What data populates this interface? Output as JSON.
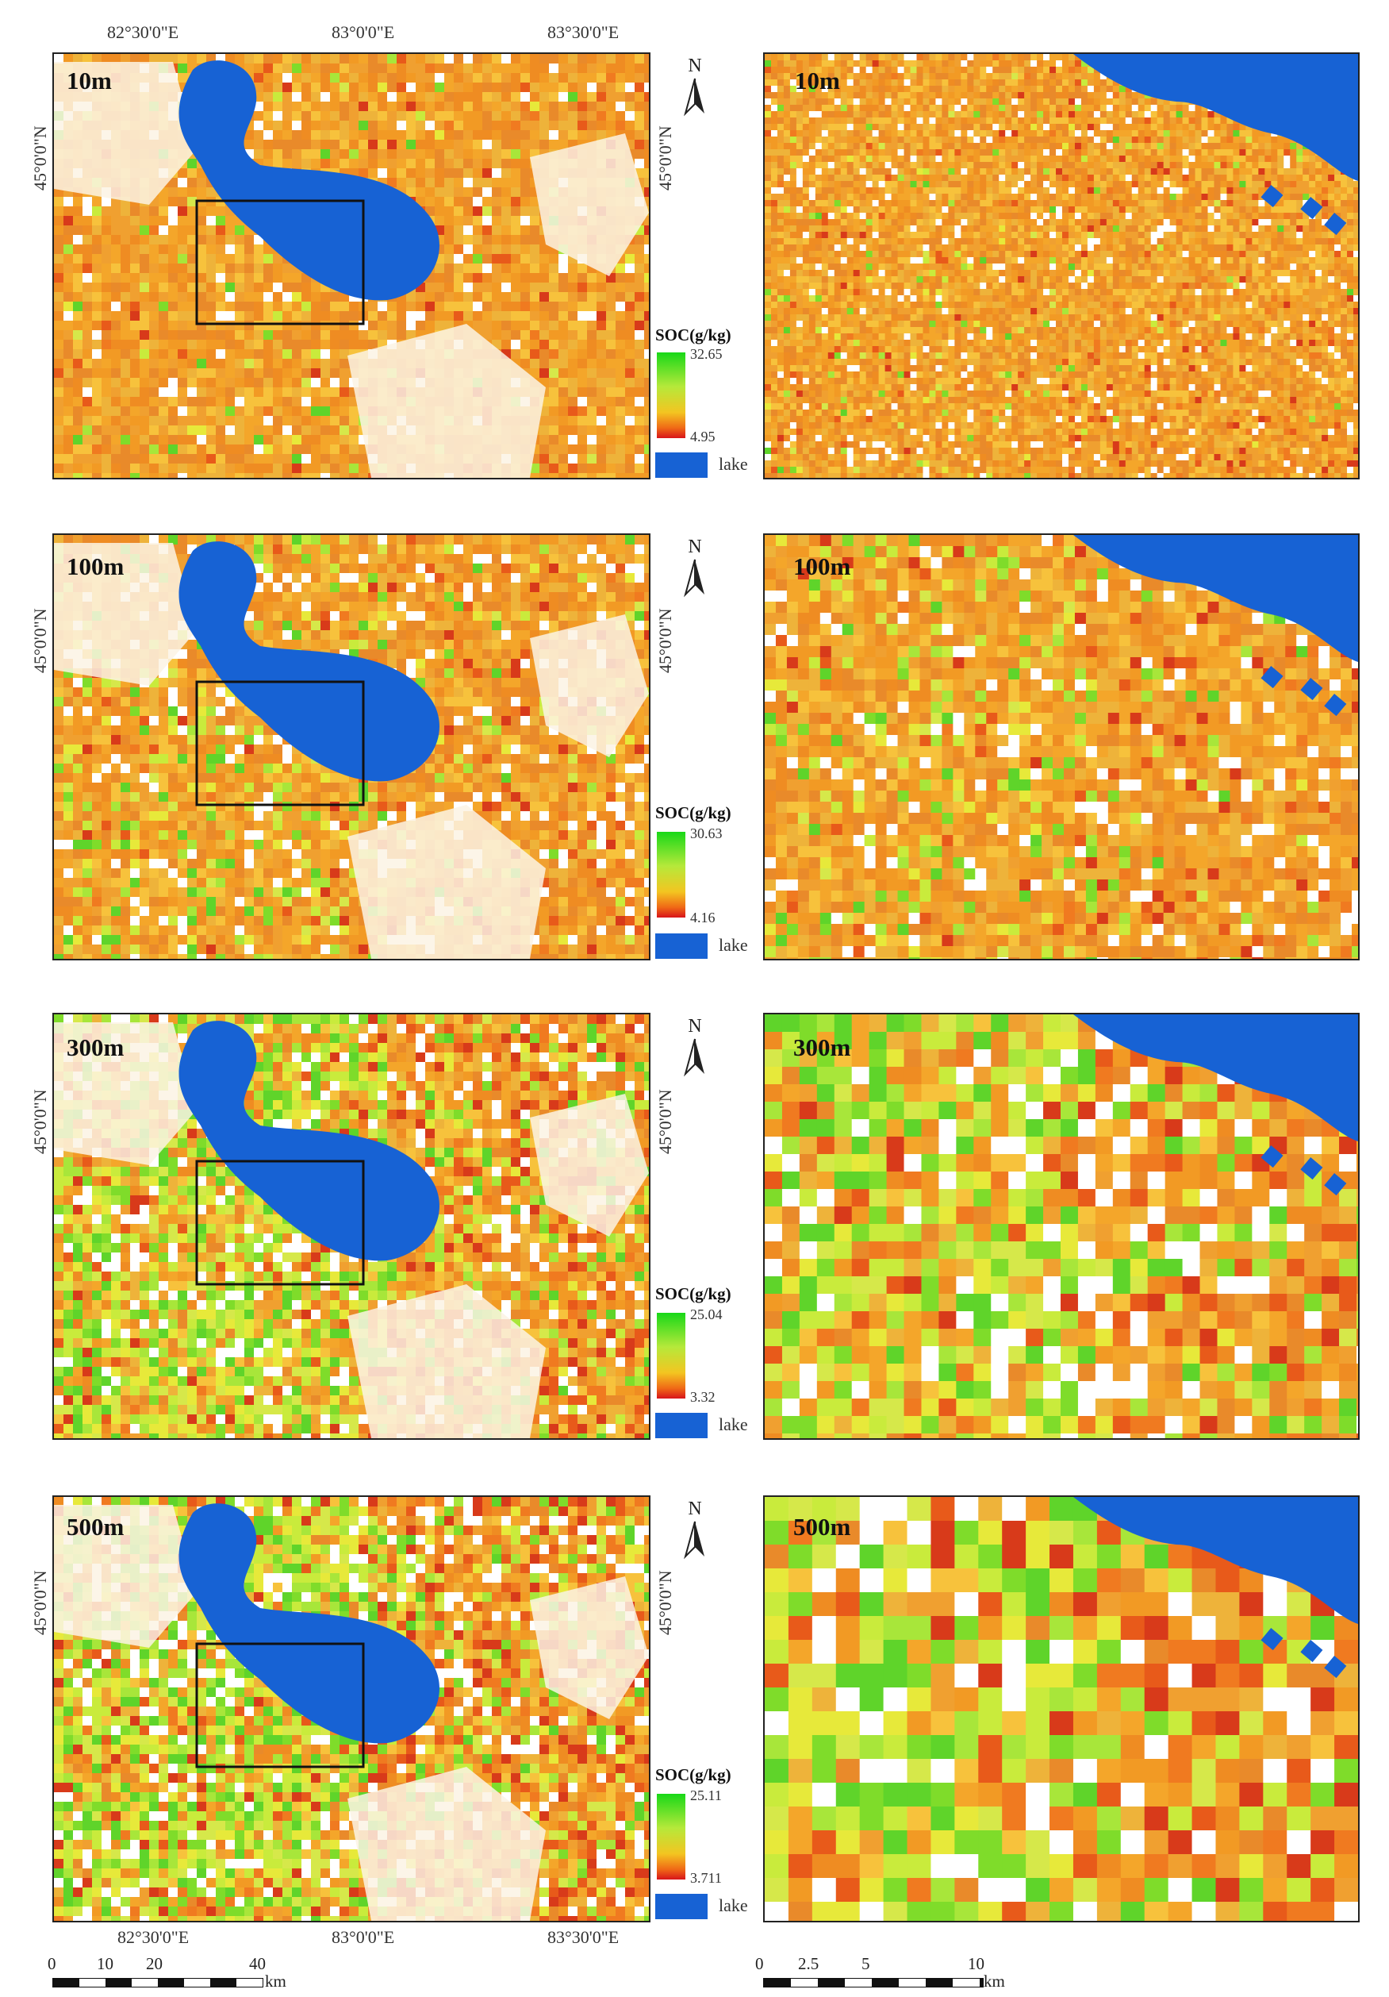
{
  "colors": {
    "lake": "#1762d4",
    "soc_high": "#18d818",
    "soc_mid": "#f3c521",
    "soc_low": "#d8141a",
    "box": "#111111"
  },
  "axes": {
    "top_longitudes": [
      "82°30'0\"E",
      "83°0'0\"E",
      "83°30'0\"E"
    ],
    "bottom_longitudes": [
      "82°30'0\"E",
      "83°0'0\"E",
      "83°30'0\"E"
    ],
    "latitude": "45°0'0\"N"
  },
  "north_arrow": "N",
  "lake_label": "lake",
  "legend_title": "SOC(g/kg)",
  "panels": [
    {
      "label": "10m",
      "soc_max": "32.65",
      "soc_min": "4.95"
    },
    {
      "label": "100m",
      "soc_max": "30.63",
      "soc_min": "4.16"
    },
    {
      "label": "300m",
      "soc_max": "25.04",
      "soc_min": "3.32"
    },
    {
      "label": "500m",
      "soc_max": "25.11",
      "soc_min": "3.711"
    }
  ],
  "scale_left": {
    "ticks": [
      "0",
      "10",
      "20",
      "40"
    ],
    "unit": "km"
  },
  "scale_right": {
    "ticks": [
      "0",
      "2.5",
      "5",
      "10"
    ],
    "unit": "km"
  }
}
